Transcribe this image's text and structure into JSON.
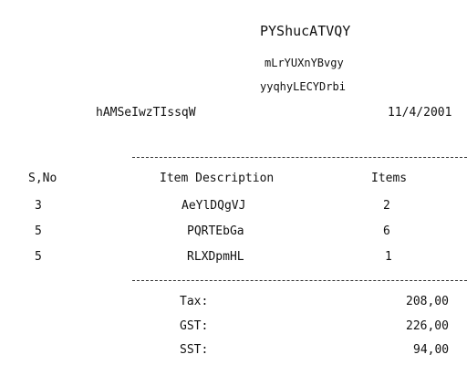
{
  "receipt": {
    "store_name": "PYShucATVQY",
    "address_line1": "mLrYUXnYBvgy",
    "address_line2": "yyqhyLECYDrbi",
    "cashier": "hAMSeIwzTIssqW",
    "date": "11/4/2001",
    "headers": {
      "sno": "S,No",
      "desc": "Item Description",
      "items": "Items"
    },
    "rows": [
      {
        "sno": "3",
        "desc": "AeYlDQgVJ",
        "qty": "2"
      },
      {
        "sno": "5",
        "desc": "PQRTEbGa",
        "qty": "6"
      },
      {
        "sno": "5",
        "desc": "RLXDpmHL",
        "qty": "1"
      }
    ],
    "totals": [
      {
        "label": "Tax:",
        "value": "208,00"
      },
      {
        "label": "GST:",
        "value": "226,00"
      },
      {
        "label": "SST:",
        "value": "94,00"
      }
    ]
  }
}
